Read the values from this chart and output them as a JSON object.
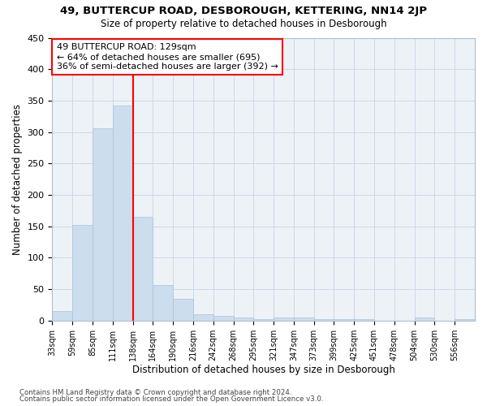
{
  "title1": "49, BUTTERCUP ROAD, DESBOROUGH, KETTERING, NN14 2JP",
  "title2": "Size of property relative to detached houses in Desborough",
  "xlabel": "Distribution of detached houses by size in Desborough",
  "ylabel": "Number of detached properties",
  "bin_labels": [
    "33sqm",
    "59sqm",
    "85sqm",
    "111sqm",
    "138sqm",
    "164sqm",
    "190sqm",
    "216sqm",
    "242sqm",
    "268sqm",
    "295sqm",
    "321sqm",
    "347sqm",
    "373sqm",
    "399sqm",
    "425sqm",
    "451sqm",
    "478sqm",
    "504sqm",
    "530sqm",
    "556sqm"
  ],
  "bar_heights": [
    15,
    152,
    306,
    342,
    165,
    56,
    35,
    10,
    8,
    5,
    2,
    5,
    5,
    3,
    3,
    2,
    0,
    0,
    5,
    0,
    3
  ],
  "bar_color": "#ccdded",
  "bar_edgecolor": "#a8c4d8",
  "property_line_x": 4.0,
  "annotation_text": "49 BUTTERCUP ROAD: 129sqm\n← 64% of detached houses are smaller (695)\n36% of semi-detached houses are larger (392) →",
  "annotation_box_color": "white",
  "annotation_box_edgecolor": "red",
  "vline_color": "red",
  "ylim": [
    0,
    450
  ],
  "yticks": [
    0,
    50,
    100,
    150,
    200,
    250,
    300,
    350,
    400,
    450
  ],
  "grid_color": "#ccd8e8",
  "background_color": "#edf2f7",
  "footer_line1": "Contains HM Land Registry data © Crown copyright and database right 2024.",
  "footer_line2": "Contains public sector information licensed under the Open Government Licence v3.0."
}
